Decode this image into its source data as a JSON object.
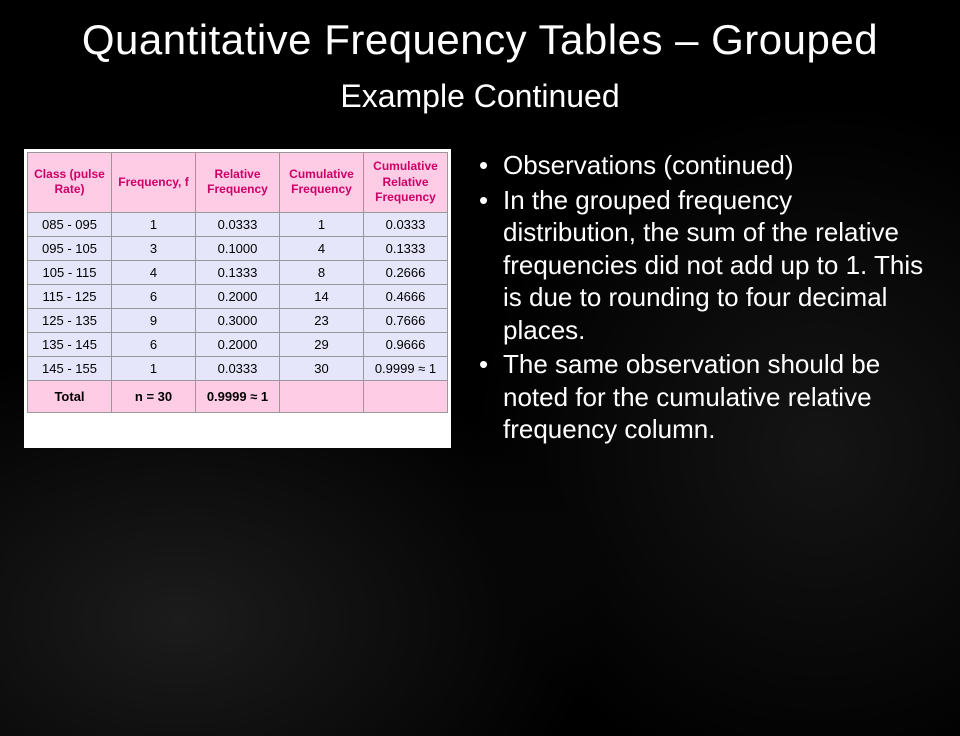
{
  "title": "Quantitative Frequency Tables – Grouped",
  "subtitle": "Example Continued",
  "table": {
    "columns": [
      "Class\n(pulse Rate)",
      "Frequency,\nf",
      "Relative\nFrequency",
      "Cumulative\nFrequency",
      "Cumulative\nRelative\nFrequency"
    ],
    "rows": [
      [
        "085 - 095",
        "1",
        "0.0333",
        "1",
        "0.0333"
      ],
      [
        "095 - 105",
        "3",
        "0.1000",
        "4",
        "0.1333"
      ],
      [
        "105 - 115",
        "4",
        "0.1333",
        "8",
        "0.2666"
      ],
      [
        "115 - 125",
        "6",
        "0.2000",
        "14",
        "0.4666"
      ],
      [
        "125 - 135",
        "9",
        "0.3000",
        "23",
        "0.7666"
      ],
      [
        "135 - 145",
        "6",
        "0.2000",
        "29",
        "0.9666"
      ],
      [
        "145 - 155",
        "1",
        "0.0333",
        "30",
        "0.9999 ≈ 1"
      ]
    ],
    "total": [
      "Total",
      "n = 30",
      "0.9999 ≈ 1",
      "",
      ""
    ]
  },
  "bullets": [
    "Observations (continued)",
    "In the grouped frequency distribution, the sum of the relative frequencies did not add up to 1.  This is due to rounding to four decimal places.",
    "The same observation should be noted for the cumulative relative frequency column."
  ],
  "colors": {
    "header_bg": "#ffcce6",
    "header_text": "#cc0066",
    "cell_bg": "#e6e6fa",
    "table_bg": "#ffffcc",
    "page_bg": "#000000",
    "text": "#ffffff"
  }
}
